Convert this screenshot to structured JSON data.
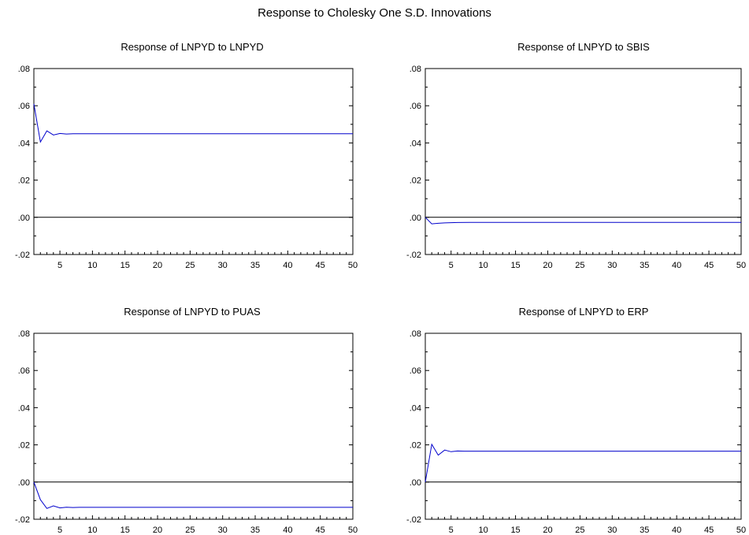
{
  "title": "Response to Cholesky One S.D. Innovations",
  "chart_data": [
    {
      "type": "line",
      "title": "Response of LNPYD to LNPYD",
      "xlim": [
        1,
        50
      ],
      "ylim": [
        -0.02,
        0.08
      ],
      "xticks": [
        5,
        10,
        15,
        20,
        25,
        30,
        35,
        40,
        45,
        50
      ],
      "yticks": [
        -0.02,
        0.0,
        0.02,
        0.04,
        0.06,
        0.08
      ],
      "ytick_labels": [
        "-.02",
        ".00",
        ".02",
        ".04",
        ".06",
        ".08"
      ],
      "zero_line": true,
      "line_color": "#0000cc",
      "x": [
        1,
        2,
        3,
        4,
        5,
        6,
        7,
        8,
        10,
        15,
        20,
        25,
        30,
        35,
        40,
        45,
        50
      ],
      "y": [
        0.061,
        0.0405,
        0.0465,
        0.0443,
        0.0451,
        0.0448,
        0.0449,
        0.0449,
        0.0449,
        0.0449,
        0.0449,
        0.0449,
        0.0449,
        0.0449,
        0.0449,
        0.0449,
        0.0449
      ]
    },
    {
      "type": "line",
      "title": "Response of LNPYD to SBIS",
      "xlim": [
        1,
        50
      ],
      "ylim": [
        -0.02,
        0.08
      ],
      "xticks": [
        5,
        10,
        15,
        20,
        25,
        30,
        35,
        40,
        45,
        50
      ],
      "yticks": [
        -0.02,
        0.0,
        0.02,
        0.04,
        0.06,
        0.08
      ],
      "ytick_labels": [
        "-.02",
        ".00",
        ".02",
        ".04",
        ".06",
        ".08"
      ],
      "zero_line": true,
      "line_color": "#0000cc",
      "x": [
        1,
        2,
        3,
        4,
        5,
        6,
        8,
        10,
        15,
        20,
        25,
        30,
        35,
        40,
        45,
        50
      ],
      "y": [
        0.0,
        -0.0035,
        -0.0032,
        -0.003,
        -0.0029,
        -0.0028,
        -0.0027,
        -0.0027,
        -0.0027,
        -0.0027,
        -0.0027,
        -0.0027,
        -0.0027,
        -0.0027,
        -0.0027,
        -0.0027
      ]
    },
    {
      "type": "line",
      "title": "Response of LNPYD to PUAS",
      "xlim": [
        1,
        50
      ],
      "ylim": [
        -0.02,
        0.08
      ],
      "xticks": [
        5,
        10,
        15,
        20,
        25,
        30,
        35,
        40,
        45,
        50
      ],
      "yticks": [
        -0.02,
        0.0,
        0.02,
        0.04,
        0.06,
        0.08
      ],
      "ytick_labels": [
        "-.02",
        ".00",
        ".02",
        ".04",
        ".06",
        ".08"
      ],
      "zero_line": true,
      "line_color": "#0000cc",
      "x": [
        1,
        2,
        3,
        4,
        5,
        6,
        7,
        8,
        10,
        15,
        20,
        25,
        30,
        35,
        40,
        45,
        50
      ],
      "y": [
        0.0,
        -0.0095,
        -0.0142,
        -0.0128,
        -0.0139,
        -0.0135,
        -0.0137,
        -0.0136,
        -0.0136,
        -0.0136,
        -0.0136,
        -0.0136,
        -0.0136,
        -0.0136,
        -0.0136,
        -0.0136,
        -0.0136
      ]
    },
    {
      "type": "line",
      "title": "Response of LNPYD to ERP",
      "xlim": [
        1,
        50
      ],
      "ylim": [
        -0.02,
        0.08
      ],
      "xticks": [
        5,
        10,
        15,
        20,
        25,
        30,
        35,
        40,
        45,
        50
      ],
      "yticks": [
        -0.02,
        0.0,
        0.02,
        0.04,
        0.06,
        0.08
      ],
      "ytick_labels": [
        "-.02",
        ".00",
        ".02",
        ".04",
        ".06",
        ".08"
      ],
      "zero_line": true,
      "line_color": "#0000cc",
      "x": [
        1,
        2,
        3,
        4,
        5,
        6,
        7,
        8,
        10,
        15,
        20,
        25,
        30,
        35,
        40,
        45,
        50
      ],
      "y": [
        0.0,
        0.0203,
        0.0145,
        0.0172,
        0.0163,
        0.0167,
        0.0166,
        0.0166,
        0.0166,
        0.0166,
        0.0166,
        0.0166,
        0.0166,
        0.0166,
        0.0166,
        0.0166,
        0.0166
      ]
    }
  ]
}
